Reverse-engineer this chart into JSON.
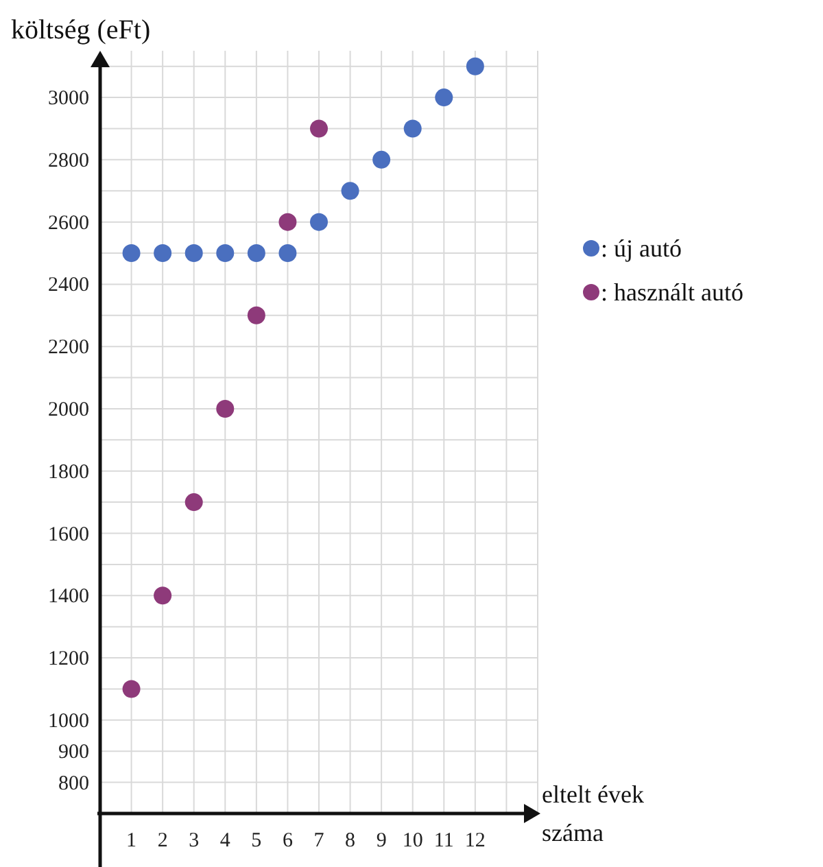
{
  "chart_data": {
    "type": "scatter",
    "ylabel": "költség (eFt)",
    "xlabel": "eltelt évek száma",
    "xlim": [
      0,
      14
    ],
    "ylim": [
      700,
      3150
    ],
    "xticks": [
      1,
      2,
      3,
      4,
      5,
      6,
      7,
      8,
      9,
      10,
      11,
      12
    ],
    "yticks": [
      800,
      900,
      1000,
      1200,
      1400,
      1600,
      1800,
      2000,
      2200,
      2400,
      2600,
      2800,
      3000
    ],
    "grid": true,
    "legend": "right",
    "marker": "circle",
    "series": [
      {
        "name": ": új autó",
        "color": "#4a6fbf",
        "x": [
          1,
          2,
          3,
          4,
          5,
          6,
          7,
          8,
          9,
          10,
          11,
          12
        ],
        "values": [
          2500,
          2500,
          2500,
          2500,
          2500,
          2500,
          2600,
          2700,
          2800,
          2900,
          3000,
          3100
        ]
      },
      {
        "name": ": használt autó",
        "color": "#8e3a7a",
        "x": [
          1,
          2,
          3,
          4,
          5,
          6,
          7
        ],
        "values": [
          1100,
          1400,
          1700,
          2000,
          2300,
          2600,
          2900
        ]
      }
    ]
  }
}
